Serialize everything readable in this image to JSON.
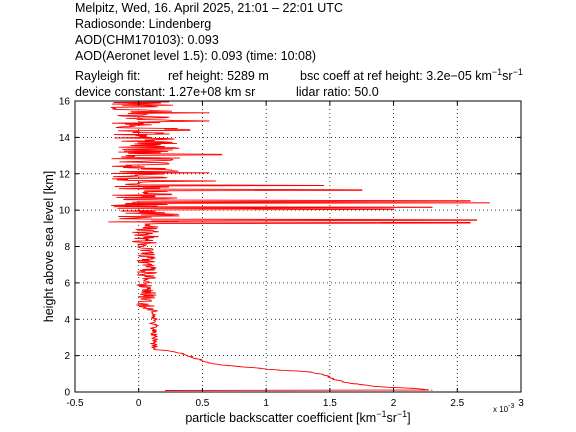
{
  "header": {
    "line1": "Melpitz, Wed, 16. April 2025, 21:01 – 22:01 UTC",
    "line2": "Radiosonde: Lindenberg",
    "line3": "AOD(CHM170103): 0.093",
    "line4": "AOD(Aeronet level 1.5): 0.093   (time: 10:08)",
    "rayleigh_label": "Rayleigh fit:",
    "ref_height": "ref height: 5289 m",
    "bsc_prefix": "bsc coeff at ref height: 3.2e−05 km",
    "bsc_exp1": "−1",
    "bsc_mid": "sr",
    "bsc_exp2": "−1",
    "device_constant": "device constant: 1.27e+08 km sr",
    "lidar_ratio": "lidar ratio: 50.0"
  },
  "chart_data": {
    "type": "line",
    "xlabel_prefix": "particle backscatter coefficient [km",
    "xlabel_exp1": "−1",
    "xlabel_mid": "sr",
    "xlabel_exp2": "−1",
    "xlabel_suffix": "]",
    "ylabel": "height above sea level [km]",
    "x_multiplier": "x 10",
    "x_multiplier_exp": "-3",
    "xlim": [
      -0.5,
      3.0
    ],
    "ylim": [
      0,
      16
    ],
    "xticks": [
      -0.5,
      0,
      0.5,
      1,
      1.5,
      2,
      2.5,
      3
    ],
    "xtick_labels": [
      "-0.5",
      "0",
      "0.5",
      "1",
      "1.5",
      "2",
      "2.5",
      "3"
    ],
    "yticks": [
      0,
      2,
      4,
      6,
      8,
      10,
      12,
      14,
      16
    ],
    "ytick_labels": [
      "0",
      "2",
      "4",
      "6",
      "8",
      "10",
      "12",
      "14",
      "16"
    ],
    "grid": true,
    "series": [
      {
        "color": "#ff0000",
        "profile": [
          [
            0.2,
            2.3
          ],
          [
            0.35,
            2.1
          ],
          [
            0.45,
            1.85
          ],
          [
            0.55,
            1.6
          ],
          [
            0.7,
            1.45
          ],
          [
            0.95,
            1.3
          ],
          [
            1.1,
            1.2
          ],
          [
            1.25,
            1.15
          ],
          [
            1.35,
            1.1
          ],
          [
            1.45,
            0.95
          ],
          [
            1.5,
            0.8
          ],
          [
            1.55,
            0.65
          ],
          [
            1.65,
            0.5
          ],
          [
            1.75,
            0.4
          ],
          [
            1.85,
            0.3
          ],
          [
            2.0,
            0.25
          ],
          [
            2.15,
            0.2
          ],
          [
            2.3,
            0.1
          ]
        ],
        "spikes": [
          [
            8.55,
            0.15
          ],
          [
            9.3,
            2.6
          ],
          [
            9.45,
            2.65
          ],
          [
            10.05,
            2.0
          ],
          [
            10.15,
            2.3
          ],
          [
            10.4,
            2.75
          ],
          [
            10.5,
            2.6
          ],
          [
            11.1,
            1.75
          ],
          [
            11.35,
            1.45
          ],
          [
            11.6,
            0.6
          ],
          [
            12.05,
            0.55
          ],
          [
            13.05,
            0.65
          ],
          [
            14.4,
            0.4
          ],
          [
            14.9,
            0.55
          ],
          [
            15.35,
            0.55
          ]
        ]
      }
    ]
  }
}
